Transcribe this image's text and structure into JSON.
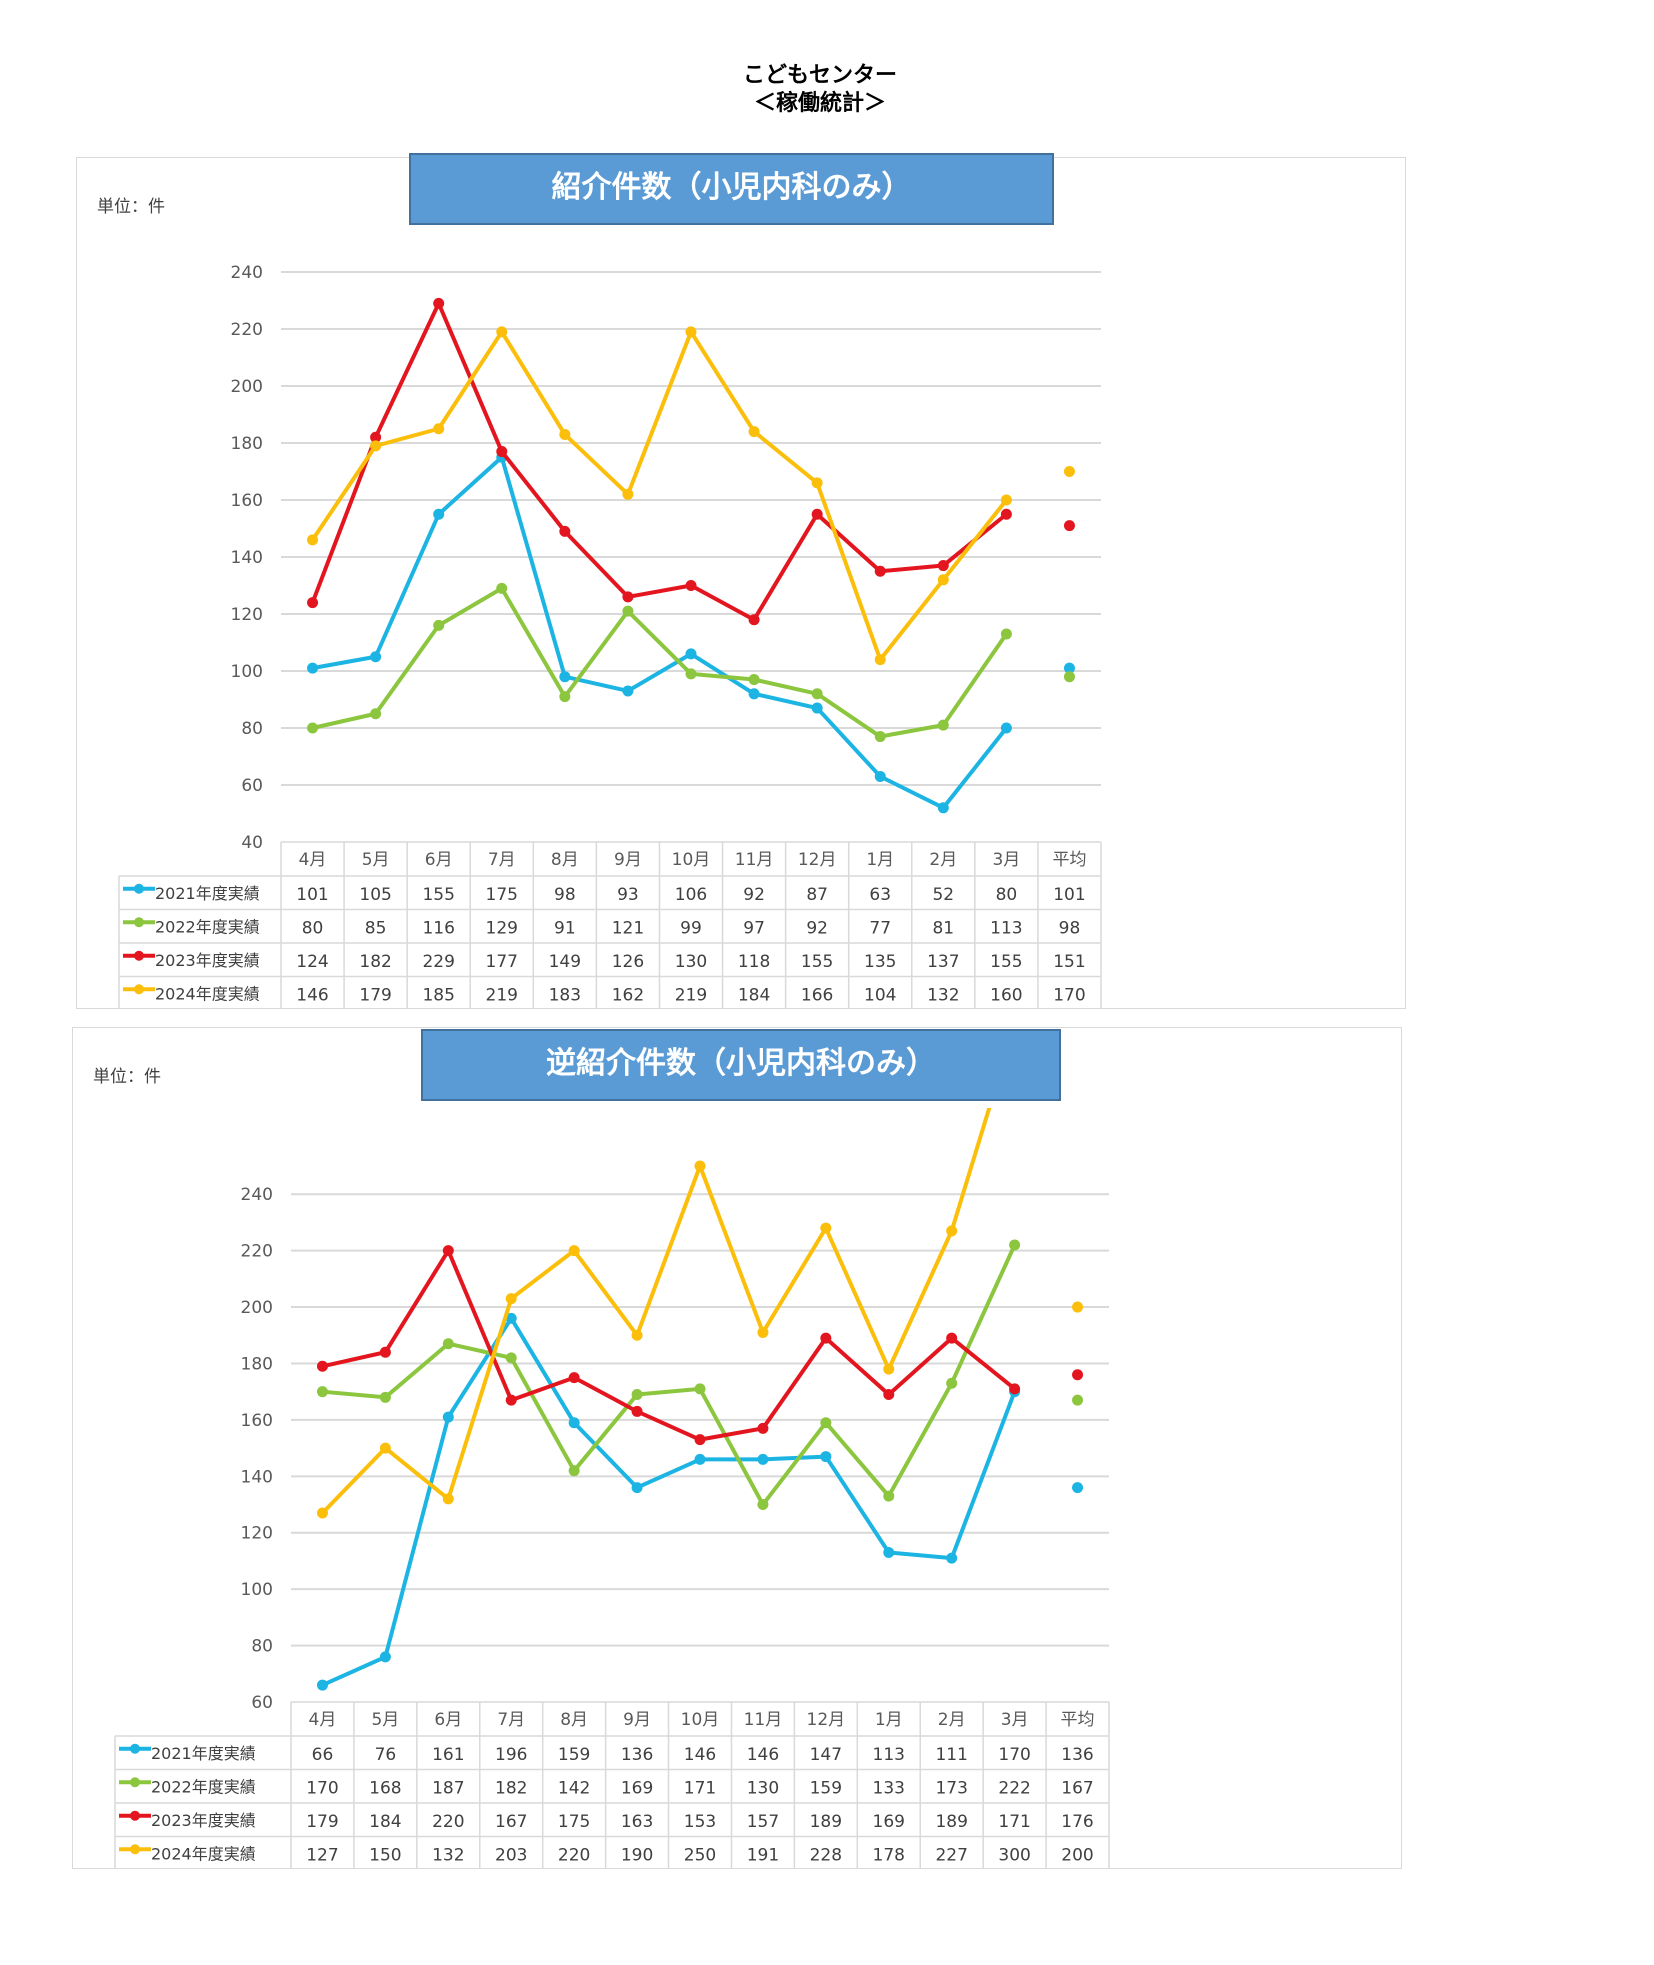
{
  "page": {
    "title_line1": "こどもセンター",
    "title_line2": "＜稼働統計＞"
  },
  "colors": {
    "s2021": "#1cb4e3",
    "s2022": "#8cc63f",
    "s2023": "#e3161f",
    "s2024": "#fbbf0b"
  },
  "chart_data": [
    {
      "type": "line",
      "title": "紹介件数（小児内科のみ）",
      "unit_label": "単位：件",
      "categories": [
        "4月",
        "5月",
        "6月",
        "7月",
        "8月",
        "9月",
        "10月",
        "11月",
        "12月",
        "1月",
        "2月",
        "3月",
        "平均"
      ],
      "ylim": [
        40,
        240
      ],
      "yticks": [
        40,
        60,
        80,
        100,
        120,
        140,
        160,
        180,
        200,
        220,
        240
      ],
      "grid": true,
      "legend": "table-below",
      "series": [
        {
          "name": "2021年度実績",
          "values": [
            101,
            105,
            155,
            175,
            98,
            93,
            106,
            92,
            87,
            63,
            52,
            80,
            101
          ]
        },
        {
          "name": "2022年度実績",
          "values": [
            80,
            85,
            116,
            129,
            91,
            121,
            99,
            97,
            92,
            77,
            81,
            113,
            98
          ]
        },
        {
          "name": "2023年度実績",
          "values": [
            124,
            182,
            229,
            177,
            149,
            126,
            130,
            118,
            155,
            135,
            137,
            155,
            151
          ]
        },
        {
          "name": "2024年度実績",
          "values": [
            146,
            179,
            185,
            219,
            183,
            162,
            219,
            184,
            166,
            104,
            132,
            160,
            170
          ]
        }
      ]
    },
    {
      "type": "line",
      "title": "逆紹介件数（小児内科のみ）",
      "unit_label": "単位：件",
      "categories": [
        "4月",
        "5月",
        "6月",
        "7月",
        "8月",
        "9月",
        "10月",
        "11月",
        "12月",
        "1月",
        "2月",
        "3月",
        "平均"
      ],
      "ylim": [
        60,
        250
      ],
      "yticks": [
        60,
        80,
        100,
        120,
        140,
        160,
        180,
        200,
        220,
        240
      ],
      "grid": true,
      "legend": "table-below",
      "series": [
        {
          "name": "2021年度実績",
          "values": [
            66,
            76,
            161,
            196,
            159,
            136,
            146,
            146,
            147,
            113,
            111,
            170,
            136
          ]
        },
        {
          "name": "2022年度実績",
          "values": [
            170,
            168,
            187,
            182,
            142,
            169,
            171,
            130,
            159,
            133,
            173,
            222,
            167
          ]
        },
        {
          "name": "2023年度実績",
          "values": [
            179,
            184,
            220,
            167,
            175,
            163,
            153,
            157,
            189,
            169,
            189,
            171,
            176
          ]
        },
        {
          "name": "2024年度実績",
          "values": [
            127,
            150,
            132,
            203,
            220,
            190,
            250,
            191,
            228,
            178,
            227,
            300,
            200
          ]
        }
      ]
    }
  ]
}
